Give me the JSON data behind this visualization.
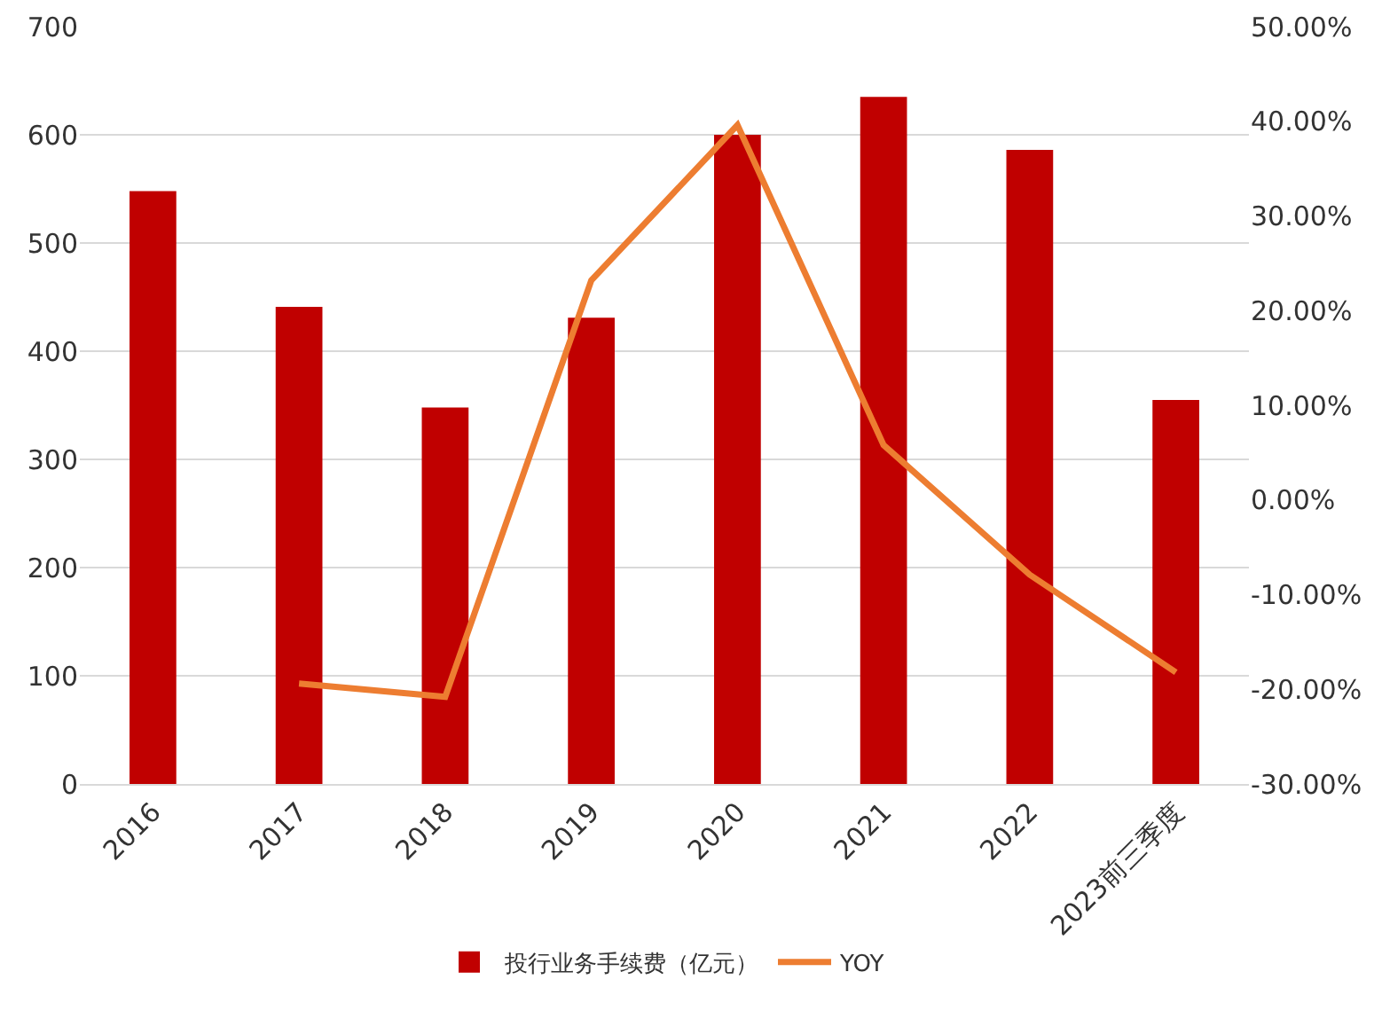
{
  "chart_data": {
    "type": "bar",
    "categories": [
      "2016",
      "2017",
      "2018",
      "2019",
      "2020",
      "2021",
      "2022",
      "2023前三季度"
    ],
    "series": [
      {
        "name": "投行业务手续费（亿元）",
        "color": "#c00000",
        "values": [
          548,
          441,
          348,
          431,
          600,
          635,
          586,
          355
        ]
      },
      {
        "name": "YOY",
        "type": "line",
        "axis": "y2",
        "color": "#ed7d31",
        "values": [
          null,
          -19.4,
          -20.8,
          23.2,
          39.6,
          5.8,
          -7.9,
          -18.2
        ]
      }
    ],
    "ylim": [
      0,
      700
    ],
    "yticks": [
      0,
      100,
      200,
      300,
      400,
      500,
      600,
      700
    ],
    "y2lim": [
      -30,
      50
    ],
    "y2ticks": [
      {
        "value": -30,
        "label": "-30.00%"
      },
      {
        "value": -20,
        "label": "-20.00%"
      },
      {
        "value": -10,
        "label": "-10.00%"
      },
      {
        "value": 0,
        "label": "0.00%"
      },
      {
        "value": 10,
        "label": "10.00%"
      },
      {
        "value": 20,
        "label": "20.00%"
      },
      {
        "value": 30,
        "label": "30.00%"
      },
      {
        "value": 40,
        "label": "40.00%"
      },
      {
        "value": 50,
        "label": "50.00%"
      }
    ],
    "grid": "y",
    "legend": "bottom",
    "marker": "none",
    "line_style": "solid"
  }
}
